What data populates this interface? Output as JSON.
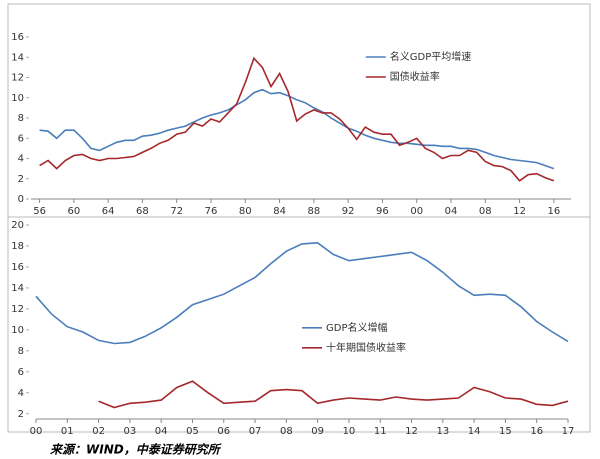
{
  "chart_data": [
    {
      "type": "line",
      "x": [
        1956,
        1957,
        1958,
        1959,
        1960,
        1961,
        1962,
        1963,
        1964,
        1965,
        1966,
        1967,
        1968,
        1969,
        1970,
        1971,
        1972,
        1973,
        1974,
        1975,
        1976,
        1977,
        1978,
        1979,
        1980,
        1981,
        1982,
        1983,
        1984,
        1985,
        1986,
        1987,
        1988,
        1989,
        1990,
        1991,
        1992,
        1993,
        1994,
        1995,
        1996,
        1997,
        1998,
        1999,
        2000,
        2001,
        2002,
        2003,
        2004,
        2005,
        2006,
        2007,
        2008,
        2009,
        2010,
        2011,
        2012,
        2013,
        2014,
        2015,
        2016
      ],
      "series": [
        {
          "name": "名义GDP平均增速",
          "color": "#4a7ebb",
          "values": [
            6.8,
            6.7,
            6.0,
            6.8,
            6.8,
            6.0,
            5.0,
            4.8,
            5.2,
            5.6,
            5.8,
            5.8,
            6.2,
            6.3,
            6.5,
            6.8,
            7.0,
            7.2,
            7.6,
            8.0,
            8.3,
            8.5,
            8.8,
            9.3,
            9.8,
            10.5,
            10.8,
            10.4,
            10.5,
            10.2,
            9.8,
            9.5,
            9.0,
            8.6,
            8.0,
            7.5,
            7.0,
            6.7,
            6.3,
            6.0,
            5.8,
            5.6,
            5.5,
            5.5,
            5.4,
            5.3,
            5.3,
            5.2,
            5.2,
            5.0,
            5.0,
            4.9,
            4.6,
            4.3,
            4.1,
            3.9,
            3.8,
            3.7,
            3.6,
            3.3,
            3.0
          ]
        },
        {
          "name": "国债收益率",
          "color": "#a5282b",
          "values": [
            3.3,
            3.8,
            3.0,
            3.8,
            4.3,
            4.4,
            4.0,
            3.8,
            4.0,
            4.0,
            4.1,
            4.2,
            4.6,
            5.0,
            5.5,
            5.8,
            6.4,
            6.6,
            7.5,
            7.2,
            7.9,
            7.6,
            8.5,
            9.4,
            11.5,
            13.9,
            13.0,
            11.1,
            12.4,
            10.6,
            7.7,
            8.4,
            8.8,
            8.5,
            8.5,
            7.9,
            7.0,
            5.9,
            7.1,
            6.6,
            6.4,
            6.4,
            5.3,
            5.6,
            6.0,
            5.0,
            4.6,
            4.0,
            4.3,
            4.3,
            4.8,
            4.6,
            3.7,
            3.3,
            3.2,
            2.8,
            1.8,
            2.4,
            2.5,
            2.1,
            1.8
          ]
        }
      ],
      "xlim": [
        1955,
        2018
      ],
      "xticks": [
        {
          "value": 1956,
          "label": "56"
        },
        {
          "value": 1960,
          "label": "60"
        },
        {
          "value": 1964,
          "label": "64"
        },
        {
          "value": 1968,
          "label": "68"
        },
        {
          "value": 1972,
          "label": "72"
        },
        {
          "value": 1976,
          "label": "76"
        },
        {
          "value": 1980,
          "label": "80"
        },
        {
          "value": 1984,
          "label": "84"
        },
        {
          "value": 1988,
          "label": "88"
        },
        {
          "value": 1992,
          "label": "92"
        },
        {
          "value": 1996,
          "label": "96"
        },
        {
          "value": 2000,
          "label": "00"
        },
        {
          "value": 2004,
          "label": "04"
        },
        {
          "value": 2008,
          "label": "08"
        },
        {
          "value": 2012,
          "label": "12"
        },
        {
          "value": 2016,
          "label": "16"
        }
      ],
      "ylim": [
        0,
        16
      ],
      "yticks": [
        0,
        2,
        4,
        6,
        8,
        10,
        12,
        14,
        16
      ],
      "legend": "upper right"
    },
    {
      "type": "line",
      "x": [
        2000,
        2000.5,
        2001,
        2001.5,
        2002,
        2002.5,
        2003,
        2003.5,
        2004,
        2004.5,
        2005,
        2005.5,
        2006,
        2006.5,
        2007,
        2007.5,
        2008,
        2008.5,
        2009,
        2009.5,
        2010,
        2010.5,
        2011,
        2011.5,
        2012,
        2012.5,
        2013,
        2013.5,
        2014,
        2014.5,
        2015,
        2015.5,
        2016,
        2016.5,
        2017
      ],
      "series": [
        {
          "name": "GDP名义增幅",
          "color": "#4a7ebb",
          "values": [
            13.2,
            11.5,
            10.3,
            9.8,
            9.0,
            8.7,
            8.8,
            9.4,
            10.2,
            11.2,
            12.4,
            12.9,
            13.4,
            14.2,
            15.0,
            16.3,
            17.5,
            18.2,
            18.3,
            17.2,
            16.6,
            16.8,
            17.0,
            17.2,
            17.4,
            16.6,
            15.5,
            14.2,
            13.3,
            13.4,
            13.3,
            12.2,
            10.8,
            9.8,
            8.9
          ]
        },
        {
          "name": "十年期国债收益率",
          "color": "#a5282b",
          "values": [
            null,
            null,
            null,
            null,
            3.2,
            2.6,
            3.0,
            3.1,
            3.3,
            4.5,
            5.1,
            4.0,
            3.0,
            3.1,
            3.2,
            4.2,
            4.3,
            4.2,
            3.0,
            3.3,
            3.5,
            3.4,
            3.3,
            3.6,
            3.4,
            3.3,
            3.4,
            3.5,
            4.5,
            4.1,
            3.5,
            3.4,
            2.9,
            2.8,
            3.2
          ]
        }
      ],
      "xlim": [
        2000,
        2017
      ],
      "xticks": [
        {
          "value": 2000,
          "label": "00"
        },
        {
          "value": 2001,
          "label": "01"
        },
        {
          "value": 2002,
          "label": "02"
        },
        {
          "value": 2003,
          "label": "03"
        },
        {
          "value": 2004,
          "label": "04"
        },
        {
          "value": 2005,
          "label": "05"
        },
        {
          "value": 2006,
          "label": "06"
        },
        {
          "value": 2007,
          "label": "07"
        },
        {
          "value": 2008,
          "label": "08"
        },
        {
          "value": 2009,
          "label": "09"
        },
        {
          "value": 2010,
          "label": "10"
        },
        {
          "value": 2011,
          "label": "11"
        },
        {
          "value": 2012,
          "label": "12"
        },
        {
          "value": 2013,
          "label": "13"
        },
        {
          "value": 2014,
          "label": "14"
        },
        {
          "value": 2015,
          "label": "15"
        },
        {
          "value": 2016,
          "label": "16"
        },
        {
          "value": 2017,
          "label": "17"
        }
      ],
      "ylim": [
        1.5,
        20
      ],
      "yticks": [
        2,
        4,
        6,
        8,
        10,
        12,
        14,
        16,
        18,
        20
      ],
      "legend": "center right"
    }
  ],
  "source": "来源：WIND，中泰证券研究所"
}
